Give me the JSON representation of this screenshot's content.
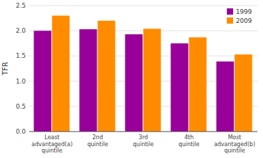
{
  "chart_data": {
    "type": "bar",
    "categories": [
      "Least\nadvantaged(a)\nquintile",
      "2nd\nquintile",
      "3rd\nquintile",
      "4th\nquintile",
      "Most\nadvantaged(b)\nquintile"
    ],
    "series": [
      {
        "name": "1999",
        "color": "#990099",
        "values": [
          2.0,
          2.03,
          1.93,
          1.75,
          1.39
        ]
      },
      {
        "name": "2009",
        "color": "#ff8c00",
        "values": [
          2.3,
          2.2,
          2.04,
          1.87,
          1.53
        ]
      }
    ],
    "ylabel": "TFR",
    "ylim": [
      0,
      2.5
    ],
    "yticks": [
      {
        "value": 0,
        "label": "0.0"
      },
      0.5,
      {
        "value": 1.0,
        "label": "1.0"
      },
      1.5,
      {
        "value": 2.0,
        "label": "2.0"
      },
      2.5
    ],
    "grid": true,
    "legend": "top-right"
  }
}
